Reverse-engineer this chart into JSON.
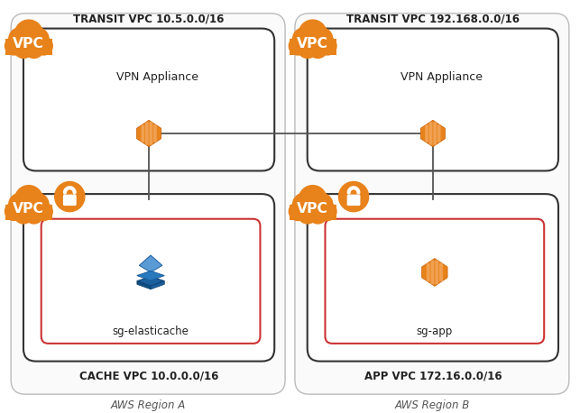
{
  "background_color": "#ffffff",
  "region_a_label": "AWS Region A",
  "region_b_label": "AWS Region B",
  "transit_vpc_a_label": "TRANSIT VPC 10.5.0.0/16",
  "transit_vpc_b_label": "TRANSIT VPC 192.168.0.0/16",
  "cache_vpc_label": "CACHE VPC 10.0.0.0/16",
  "app_vpc_label": "APP VPC 172.16.0.0/16",
  "vpn_label": "VPN Appliance",
  "sg_elasticache_label": "sg-elasticache",
  "sg_app_label": "sg-app",
  "orange": "#E8821A",
  "orange_dark": "#C75B00",
  "orange_light": "#F0A050",
  "blue1": "#1A5F9E",
  "blue2": "#2878BE",
  "blue3": "#4DA6FF",
  "blue4": "#6BBFFF",
  "red_border": "#CC3333",
  "box_border": "#333333",
  "region_border": "#BBBBBB",
  "line_color": "#555555",
  "label_color": "#222222",
  "region_label_color": "#555555"
}
